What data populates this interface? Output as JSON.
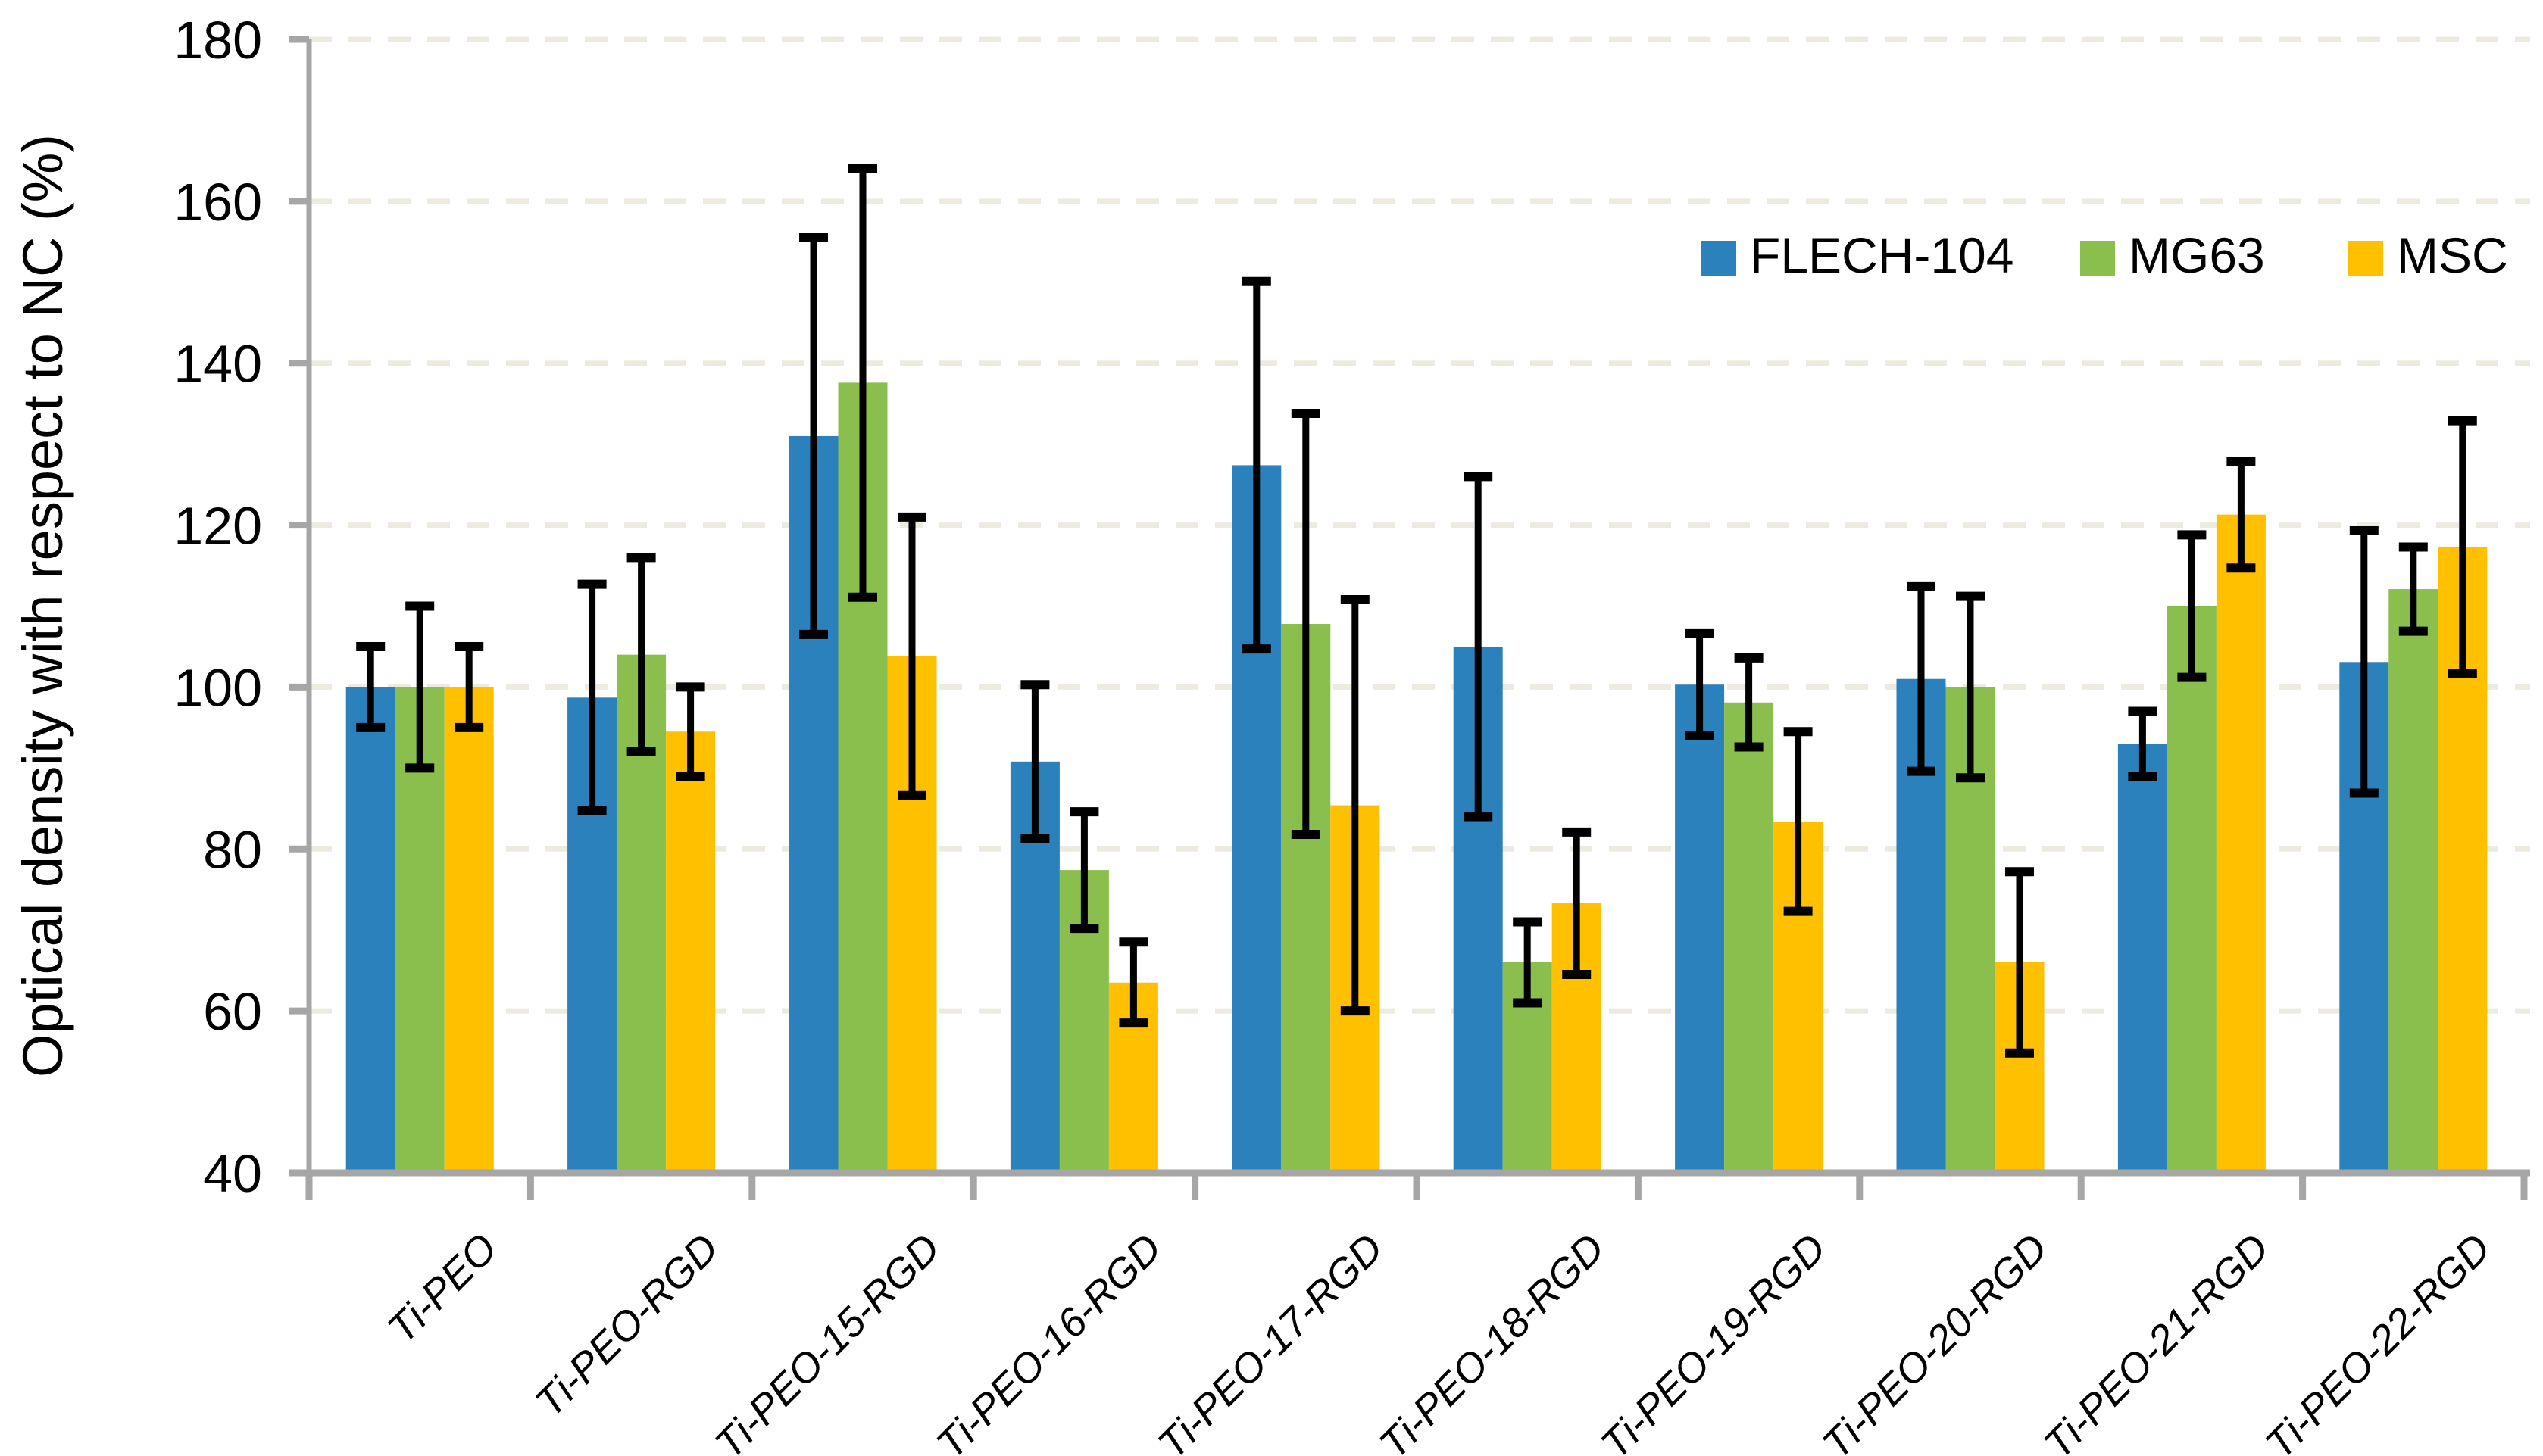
{
  "chart_data": {
    "type": "bar",
    "title": "",
    "xlabel": "",
    "ylabel": "Optical density with respect to NC (%)",
    "ylim": [
      40,
      180
    ],
    "yticks": [
      40,
      60,
      80,
      100,
      120,
      140,
      160,
      180
    ],
    "grid": "horizontal-dashed",
    "legend_position": "top-right-inside",
    "categories": [
      "Ti-PEO",
      "Ti-PEO-RGD",
      "Ti-PEO-15-RGD",
      "Ti-PEO-16-RGD",
      "Ti-PEO-17-RGD",
      "Ti-PEO-18-RGD",
      "Ti-PEO-19-RGD",
      "Ti-PEO-20-RGD",
      "Ti-PEO-21-RGD",
      "Ti-PEO-22-RGD"
    ],
    "series": [
      {
        "name": "FLECH-104",
        "color": "#2A81BC",
        "values": [
          100,
          98.7,
          131,
          90.8,
          127.4,
          105,
          100.3,
          101,
          93,
          103.1
        ],
        "errors": [
          5,
          14,
          24.5,
          9.5,
          22.7,
          21,
          6.3,
          11.4,
          4,
          16.2
        ]
      },
      {
        "name": "MG63",
        "color": "#8BBF4D",
        "values": [
          100,
          104,
          137.6,
          77.4,
          107.8,
          66,
          98.1,
          100,
          110,
          112.1
        ],
        "errors": [
          10,
          12,
          26.5,
          7.2,
          26,
          5,
          5.5,
          11.2,
          8.8,
          5.2
        ]
      },
      {
        "name": "MSC",
        "color": "#FFC000",
        "values": [
          100,
          94.5,
          103.8,
          63.5,
          85.4,
          73.3,
          83.4,
          66,
          121.3,
          117.3
        ],
        "errors": [
          5,
          5.5,
          17.2,
          5,
          25.4,
          8.8,
          11.1,
          11.2,
          6.6,
          15.6
        ]
      }
    ],
    "colors": {
      "gridline": "#EDEBE0",
      "axis": "#A6A6A6",
      "error_bar": "#000000",
      "background": "#FFFFFF"
    }
  }
}
